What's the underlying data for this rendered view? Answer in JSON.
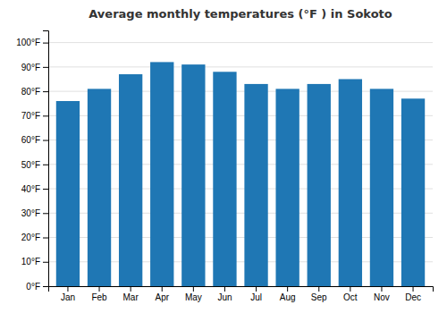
{
  "chart_data": {
    "type": "bar",
    "title": "Average monthly temperatures (°F ) in Sokoto",
    "categories": [
      "Jan",
      "Feb",
      "Mar",
      "Apr",
      "May",
      "Jun",
      "Jul",
      "Aug",
      "Sep",
      "Oct",
      "Nov",
      "Dec"
    ],
    "values": [
      76,
      81,
      87,
      92,
      91,
      88,
      83,
      81,
      83,
      85,
      81,
      77
    ],
    "ylim": [
      0,
      105
    ],
    "yticks": [
      {
        "value": 0,
        "label": "0°F"
      },
      {
        "value": 10,
        "label": "10°F"
      },
      {
        "value": 20,
        "label": "20°F"
      },
      {
        "value": 30,
        "label": "30°F"
      },
      {
        "value": 40,
        "label": "40°F"
      },
      {
        "value": 50,
        "label": "50°F"
      },
      {
        "value": 60,
        "label": "60°F"
      },
      {
        "value": 70,
        "label": "70°F"
      },
      {
        "value": 80,
        "label": "80°F"
      },
      {
        "value": 90,
        "label": "90°F"
      },
      {
        "value": 100,
        "label": "100°F"
      }
    ],
    "grid": true
  }
}
